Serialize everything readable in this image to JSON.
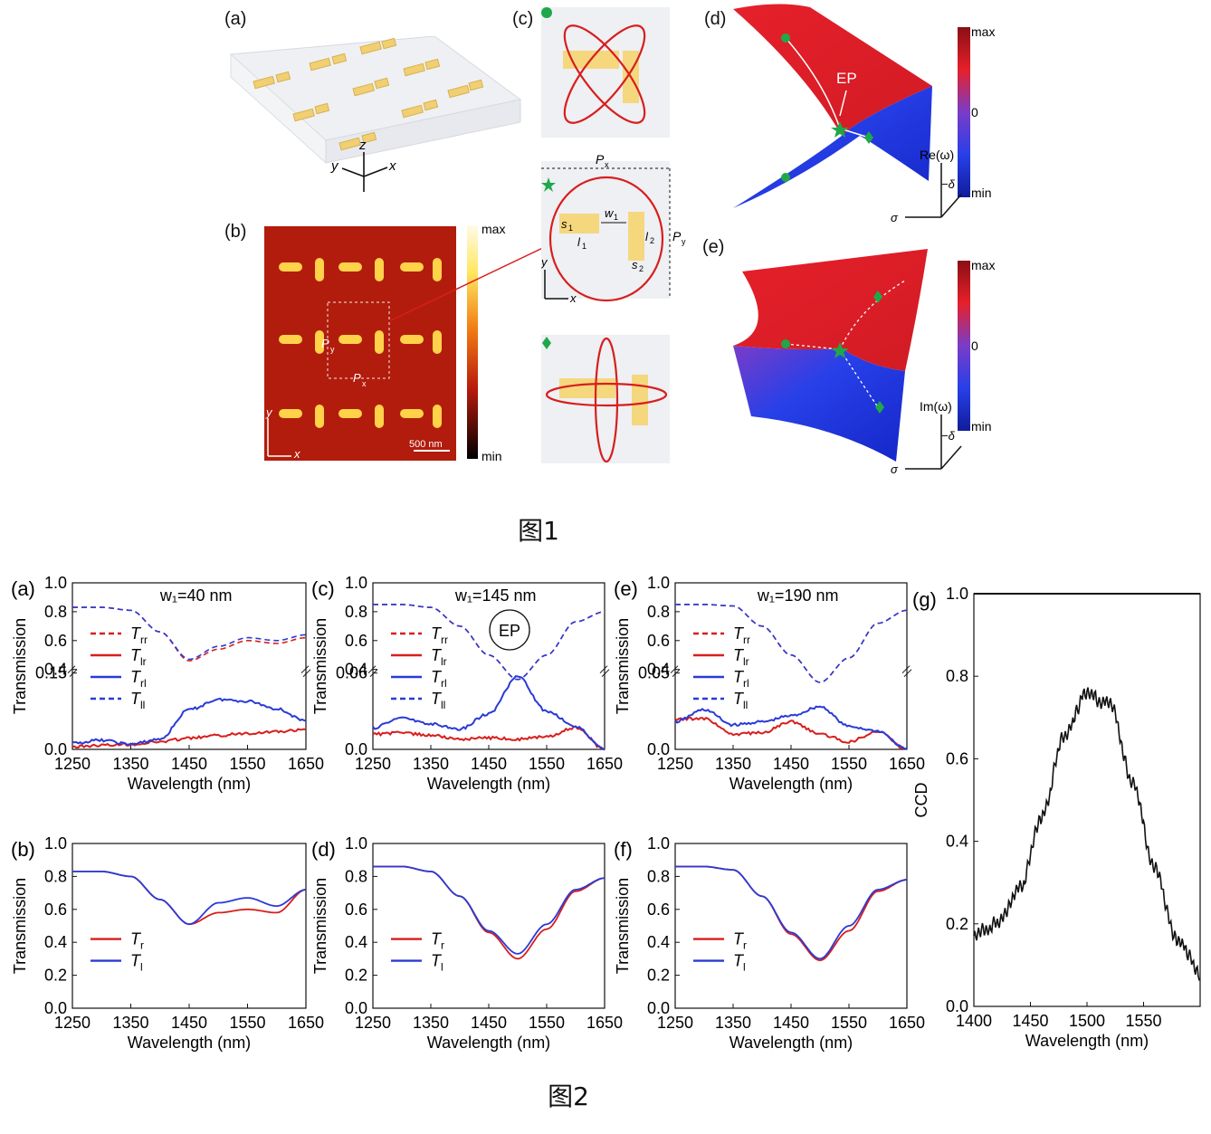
{
  "figure1": {
    "caption": "图1",
    "panels": {
      "a": "(a)",
      "b": "(b)",
      "c": "(c)",
      "d": "(d)",
      "e": "(e)"
    },
    "axis_letters": {
      "x": "x",
      "y": "y",
      "z": "z"
    },
    "panel_b": {
      "colorbar_max": "max",
      "colorbar_min": "min",
      "scale_bar": "500 nm",
      "px": "P",
      "px_sub": "x",
      "py": "P",
      "py_sub": "y"
    },
    "panel_c": {
      "px": "P",
      "px_sub": "x",
      "py": "P",
      "py_sub": "y",
      "w1": "w",
      "w1_sub": "1",
      "s1": "s",
      "s1_sub": "1",
      "s2": "s",
      "s2_sub": "2",
      "l1": "l",
      "l1_sub": "1",
      "l2": "l",
      "l2_sub": "2"
    },
    "panel_d": {
      "ep": "EP",
      "cb_max": "max",
      "cb_zero": "0",
      "cb_min": "min",
      "axis_re": "Re(ω)",
      "axis_delta": "−δ",
      "axis_sigma": "σ"
    },
    "panel_e": {
      "cb_max": "max",
      "cb_zero": "0",
      "cb_min": "min",
      "axis_im": "Im(ω)",
      "axis_delta": "−δ",
      "axis_sigma": "σ"
    },
    "colors": {
      "red": "#e6202a",
      "blue": "#1a2fd8",
      "gold": "#f5d77e",
      "green": "#1fa84a"
    }
  },
  "figure2": {
    "caption": "图2",
    "chart_data": [
      {
        "panel": "(a)",
        "type": "line",
        "annotation": "w₁=40 nm",
        "xlabel": "Wavelength (nm)",
        "ylabel": "Transmission",
        "xlim": [
          1250,
          1650
        ],
        "xticks": [
          "1250",
          "1350",
          "1450",
          "1550",
          "1650"
        ],
        "upper_ylim": [
          0.4,
          1.0
        ],
        "upper_yticks": [
          "1.0",
          "0.8",
          "0.6",
          "0.4"
        ],
        "lower_ylim": [
          0,
          0.15
        ],
        "lower_yticks": [
          "0.15",
          "0.0"
        ],
        "legend": [
          "Trr",
          "Tlr",
          "Trl",
          "Tll"
        ],
        "series": [
          {
            "name": "Trr",
            "x": [
              1250,
              1300,
              1350,
              1400,
              1450,
              1500,
              1550,
              1600,
              1650
            ],
            "y": [
              0.83,
              0.83,
              0.81,
              0.66,
              0.46,
              0.54,
              0.6,
              0.58,
              0.62
            ]
          },
          {
            "name": "Tll",
            "x": [
              1250,
              1300,
              1350,
              1400,
              1450,
              1500,
              1550,
              1600,
              1650
            ],
            "y": [
              0.83,
              0.83,
              0.81,
              0.66,
              0.47,
              0.56,
              0.62,
              0.6,
              0.64
            ]
          },
          {
            "name": "Tlr",
            "x": [
              1250,
              1300,
              1350,
              1400,
              1450,
              1500,
              1550,
              1600,
              1650
            ],
            "y": [
              0.005,
              0.008,
              0.01,
              0.015,
              0.022,
              0.027,
              0.032,
              0.035,
              0.038
            ]
          },
          {
            "name": "Trl",
            "x": [
              1250,
              1300,
              1350,
              1400,
              1450,
              1500,
              1550,
              1600,
              1650
            ],
            "y": [
              0.012,
              0.018,
              0.01,
              0.02,
              0.078,
              0.098,
              0.095,
              0.08,
              0.055
            ]
          }
        ]
      },
      {
        "panel": "(c)",
        "type": "line",
        "annotation": "w₁=145 nm",
        "ep_label": "EP",
        "xlabel": "Wavelength (nm)",
        "ylabel": "Transmission",
        "xlim": [
          1250,
          1650
        ],
        "xticks": [
          "1250",
          "1350",
          "1450",
          "1550",
          "1650"
        ],
        "upper_ylim": [
          0.4,
          1.0
        ],
        "upper_yticks": [
          "1.0",
          "0.8",
          "0.6",
          "0.4"
        ],
        "lower_ylim": [
          0,
          0.06
        ],
        "lower_yticks": [
          "0.06",
          "0.0"
        ],
        "legend": [
          "Trr",
          "Tlr",
          "Trl",
          "Tll"
        ],
        "series": [
          {
            "name": "Trr",
            "x": [
              1250,
              1300,
              1350,
              1400,
              1450,
              1500,
              1550,
              1600,
              1650
            ],
            "y": [
              0.85,
              0.85,
              0.83,
              0.7,
              0.5,
              0.33,
              0.5,
              0.73,
              0.8
            ]
          },
          {
            "name": "Tll",
            "x": [
              1250,
              1300,
              1350,
              1400,
              1450,
              1500,
              1550,
              1600,
              1650
            ],
            "y": [
              0.85,
              0.85,
              0.83,
              0.7,
              0.5,
              0.33,
              0.5,
              0.73,
              0.8
            ]
          },
          {
            "name": "Tlr",
            "x": [
              1250,
              1300,
              1350,
              1400,
              1450,
              1500,
              1550,
              1600,
              1650
            ],
            "y": [
              0.012,
              0.013,
              0.011,
              0.008,
              0.009,
              0.008,
              0.01,
              0.017,
              0.0
            ]
          },
          {
            "name": "Trl",
            "x": [
              1250,
              1300,
              1350,
              1400,
              1450,
              1500,
              1550,
              1600,
              1650
            ],
            "y": [
              0.017,
              0.025,
              0.02,
              0.016,
              0.028,
              0.057,
              0.03,
              0.018,
              0.0
            ]
          }
        ]
      },
      {
        "panel": "(e)",
        "type": "line",
        "annotation": "w₁=190 nm",
        "xlabel": "Wavelength (nm)",
        "ylabel": "Transmission",
        "xlim": [
          1250,
          1650
        ],
        "xticks": [
          "1250",
          "1350",
          "1450",
          "1550",
          "1650"
        ],
        "upper_ylim": [
          0.4,
          1.0
        ],
        "upper_yticks": [
          "1.0",
          "0.8",
          "0.6",
          "0.4"
        ],
        "lower_ylim": [
          0,
          0.05
        ],
        "lower_yticks": [
          "0.05",
          "0.0"
        ],
        "legend": [
          "Trr",
          "Tlr",
          "Trl",
          "Tll"
        ],
        "series": [
          {
            "name": "Trr",
            "x": [
              1250,
              1300,
              1350,
              1400,
              1450,
              1500,
              1550,
              1600,
              1650
            ],
            "y": [
              0.85,
              0.85,
              0.84,
              0.7,
              0.5,
              0.31,
              0.48,
              0.72,
              0.81
            ]
          },
          {
            "name": "Tll",
            "x": [
              1250,
              1300,
              1350,
              1400,
              1450,
              1500,
              1550,
              1600,
              1650
            ],
            "y": [
              0.85,
              0.85,
              0.84,
              0.7,
              0.5,
              0.31,
              0.48,
              0.72,
              0.81
            ]
          },
          {
            "name": "Tlr",
            "x": [
              1250,
              1300,
              1350,
              1400,
              1450,
              1500,
              1550,
              1600,
              1650
            ],
            "y": [
              0.02,
              0.02,
              0.01,
              0.011,
              0.018,
              0.01,
              0.005,
              0.012,
              0.0
            ]
          },
          {
            "name": "Trl",
            "x": [
              1250,
              1300,
              1350,
              1400,
              1450,
              1500,
              1550,
              1600,
              1650
            ],
            "y": [
              0.018,
              0.026,
              0.016,
              0.018,
              0.022,
              0.028,
              0.015,
              0.012,
              0.0
            ]
          }
        ]
      },
      {
        "panel": "(b)",
        "type": "line",
        "xlabel": "Wavelength (nm)",
        "ylabel": "Transmission",
        "xlim": [
          1250,
          1650
        ],
        "ylim": [
          0,
          1.0
        ],
        "xticks": [
          "1250",
          "1350",
          "1450",
          "1550",
          "1650"
        ],
        "yticks": [
          "1.0",
          "0.8",
          "0.6",
          "0.4",
          "0.2",
          "0.0"
        ],
        "legend": [
          "Tr",
          "Tl"
        ],
        "series": [
          {
            "name": "Tr",
            "x": [
              1250,
              1300,
              1350,
              1400,
              1450,
              1500,
              1550,
              1600,
              1650
            ],
            "y": [
              0.83,
              0.83,
              0.8,
              0.66,
              0.51,
              0.58,
              0.6,
              0.58,
              0.72
            ]
          },
          {
            "name": "Tl",
            "x": [
              1250,
              1300,
              1350,
              1400,
              1450,
              1500,
              1550,
              1600,
              1650
            ],
            "y": [
              0.83,
              0.83,
              0.8,
              0.66,
              0.51,
              0.64,
              0.67,
              0.62,
              0.72
            ]
          }
        ]
      },
      {
        "panel": "(d)",
        "type": "line",
        "xlabel": "Wavelength (nm)",
        "ylabel": "Transmission",
        "xlim": [
          1250,
          1650
        ],
        "ylim": [
          0,
          1.0
        ],
        "xticks": [
          "1250",
          "1350",
          "1450",
          "1550",
          "1650"
        ],
        "yticks": [
          "1.0",
          "0.8",
          "0.6",
          "0.4",
          "0.2",
          "0.0"
        ],
        "legend": [
          "Tr",
          "Tl"
        ],
        "series": [
          {
            "name": "Tr",
            "x": [
              1250,
              1300,
              1350,
              1400,
              1450,
              1500,
              1550,
              1600,
              1650
            ],
            "y": [
              0.86,
              0.86,
              0.83,
              0.68,
              0.46,
              0.3,
              0.48,
              0.71,
              0.79
            ]
          },
          {
            "name": "Tl",
            "x": [
              1250,
              1300,
              1350,
              1400,
              1450,
              1500,
              1550,
              1600,
              1650
            ],
            "y": [
              0.86,
              0.86,
              0.83,
              0.68,
              0.47,
              0.33,
              0.51,
              0.72,
              0.79
            ]
          }
        ]
      },
      {
        "panel": "(f)",
        "type": "line",
        "xlabel": "Wavelength (nm)",
        "ylabel": "Transmission",
        "xlim": [
          1250,
          1650
        ],
        "ylim": [
          0,
          1.0
        ],
        "xticks": [
          "1250",
          "1350",
          "1450",
          "1550",
          "1650"
        ],
        "yticks": [
          "1.0",
          "0.8",
          "0.6",
          "0.4",
          "0.2",
          "0.0"
        ],
        "legend": [
          "Tr",
          "Tl"
        ],
        "series": [
          {
            "name": "Tr",
            "x": [
              1250,
              1300,
              1350,
              1400,
              1450,
              1500,
              1550,
              1600,
              1650
            ],
            "y": [
              0.86,
              0.86,
              0.84,
              0.68,
              0.45,
              0.29,
              0.47,
              0.71,
              0.78
            ]
          },
          {
            "name": "Tl",
            "x": [
              1250,
              1300,
              1350,
              1400,
              1450,
              1500,
              1550,
              1600,
              1650
            ],
            "y": [
              0.86,
              0.86,
              0.84,
              0.68,
              0.46,
              0.3,
              0.5,
              0.72,
              0.78
            ]
          }
        ]
      },
      {
        "panel": "(g)",
        "type": "line",
        "xlabel": "Wavelength (nm)",
        "ylabel": "CCD",
        "xlim": [
          1400,
          1600
        ],
        "ylim": [
          0,
          1.0
        ],
        "xticks": [
          "1400",
          "1450",
          "1500",
          "1550"
        ],
        "yticks": [
          "1.0",
          "0.8",
          "0.6",
          "0.4",
          "0.2",
          "0.0"
        ],
        "series": [
          {
            "name": "CCD",
            "x": [
              1400,
              1420,
              1440,
              1460,
              1480,
              1500,
              1520,
              1540,
              1560,
              1580,
              1600
            ],
            "y": [
              0.17,
              0.2,
              0.28,
              0.46,
              0.66,
              0.76,
              0.73,
              0.55,
              0.33,
              0.16,
              0.08
            ]
          }
        ]
      }
    ]
  }
}
